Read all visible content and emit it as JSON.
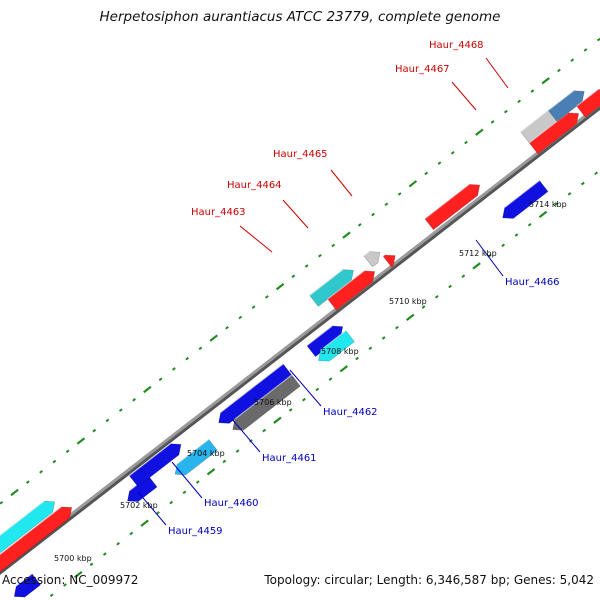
{
  "title": "Herpetosiphon aurantiacus ATCC 23779, complete genome",
  "footer": {
    "accession": "Accession: NC_009972",
    "topology": "Topology: circular",
    "length": "Length: 6,346,587 bp",
    "genes": "Genes: 5,042"
  },
  "colors": {
    "backbone": "#8c8c8c",
    "tick": "#228b22",
    "forward_label": "#cc0000",
    "reverse_label": "#0000bb",
    "red": "#ff2020",
    "blue": "#1010e0",
    "cyan": "#20e8ee",
    "teal": "#30c8cc",
    "steel": "#4a7fb5",
    "gray": "#c8c8c8",
    "dark_gray": "#6a6a6a",
    "light_blue": "#2ab4ee"
  },
  "scale_labels": [
    "5700 kbp",
    "5702 kbp",
    "5704 kbp",
    "5706 kbp",
    "5708 kbp",
    "5710 kbp",
    "5712 kbp",
    "5714 kbp"
  ],
  "gene_labels": {
    "top": [
      "Haur_4463",
      "Haur_4464",
      "Haur_4465",
      "Haur_4467",
      "Haur_4468"
    ],
    "bottom": [
      "Haur_4459",
      "Haur_4460",
      "Haur_4461",
      "Haur_4462",
      "Haur_4466"
    ]
  }
}
